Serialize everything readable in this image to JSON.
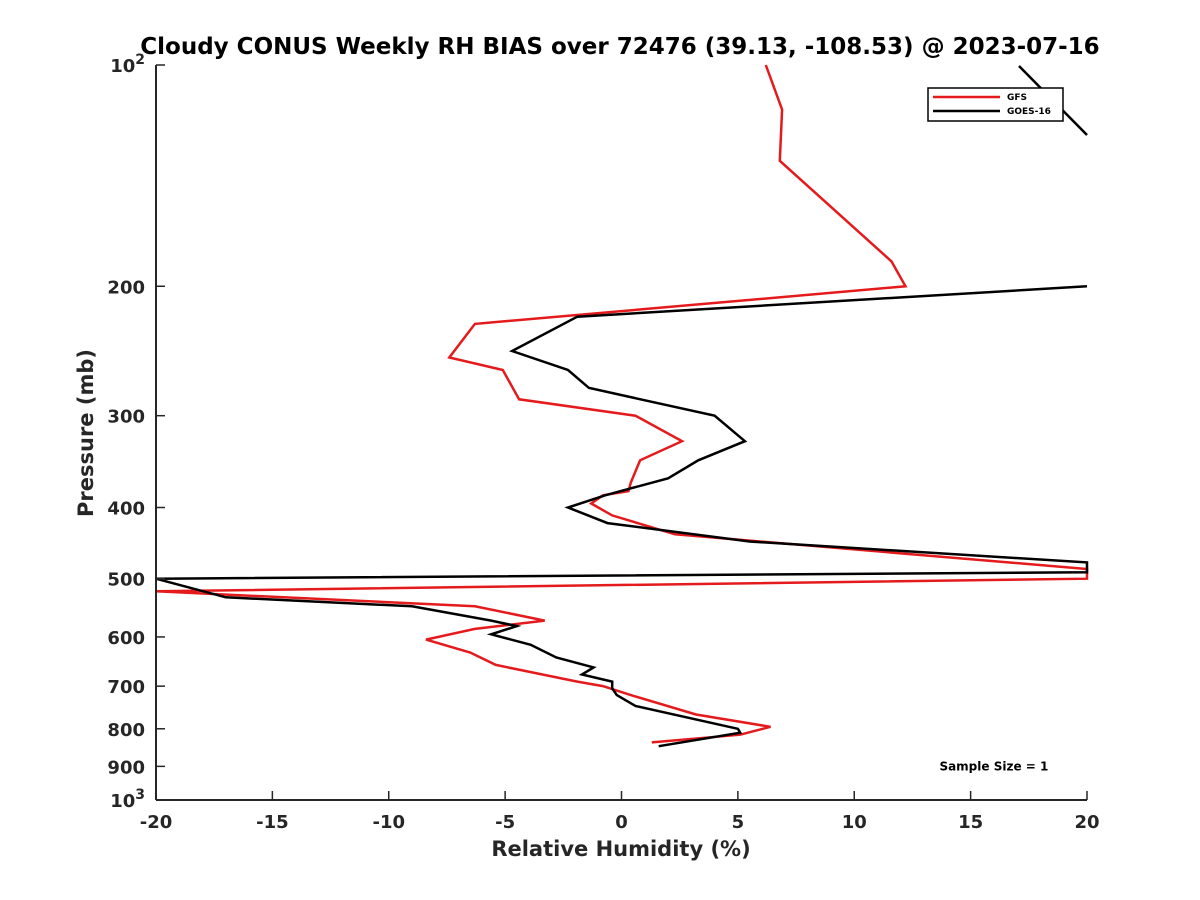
{
  "chart_data": {
    "type": "line",
    "title": "Cloudy CONUS Weekly RH BIAS over 72476 (39.13, -108.53) @ 2023-07-16",
    "xlabel": "Relative Humidity (%)",
    "ylabel": "Pressure (mb)",
    "xlim": [
      -20,
      20
    ],
    "ylim": [
      100,
      1000
    ],
    "y_scale": "log",
    "y_reversed": true,
    "grid": false,
    "legend_position": "top-right",
    "x_ticks": [
      {
        "value": -20,
        "label": "-20"
      },
      {
        "value": -15,
        "label": "-15"
      },
      {
        "value": -10,
        "label": "-10"
      },
      {
        "value": -5,
        "label": "-5"
      },
      {
        "value": 0,
        "label": "0"
      },
      {
        "value": 5,
        "label": "5"
      },
      {
        "value": 10,
        "label": "10"
      },
      {
        "value": 15,
        "label": "15"
      },
      {
        "value": 20,
        "label": "20"
      }
    ],
    "y_ticks": [
      {
        "value": 100,
        "base": "10",
        "exp": "2"
      },
      {
        "value": 200,
        "label": "200"
      },
      {
        "value": 300,
        "label": "300"
      },
      {
        "value": 400,
        "label": "400"
      },
      {
        "value": 500,
        "label": "500"
      },
      {
        "value": 600,
        "label": "600"
      },
      {
        "value": 700,
        "label": "700"
      },
      {
        "value": 800,
        "label": "800"
      },
      {
        "value": 900,
        "label": "900"
      },
      {
        "value": 1000,
        "base": "10",
        "exp": "3"
      }
    ],
    "series": [
      {
        "name": "GFS",
        "color": "#e41a1c",
        "points": [
          [
            6.2,
            100
          ],
          [
            6.9,
            115
          ],
          [
            6.8,
            135
          ],
          [
            11.6,
            185
          ],
          [
            12.2,
            200
          ],
          [
            -6.3,
            225
          ],
          [
            -7.4,
            250
          ],
          [
            -5.1,
            260
          ],
          [
            -4.4,
            285
          ],
          [
            0.6,
            300
          ],
          [
            2.6,
            325
          ],
          [
            0.8,
            345
          ],
          [
            0.4,
            370
          ],
          [
            0.3,
            380
          ],
          [
            -0.8,
            385
          ],
          [
            -1.3,
            395
          ],
          [
            -0.4,
            410
          ],
          [
            2.3,
            435
          ],
          [
            20.0,
            485
          ],
          [
            20.0,
            500
          ],
          [
            -20.0,
            520
          ],
          [
            -6.3,
            545
          ],
          [
            -3.3,
            570
          ],
          [
            -6.3,
            585
          ],
          [
            -8.4,
            605
          ],
          [
            -6.5,
            630
          ],
          [
            -5.4,
            655
          ],
          [
            -3.4,
            675
          ],
          [
            -1.9,
            690
          ],
          [
            -0.8,
            700
          ],
          [
            0.4,
            720
          ],
          [
            3.2,
            765
          ],
          [
            6.4,
            795
          ],
          [
            5.1,
            815
          ],
          [
            1.3,
            835
          ]
        ]
      },
      {
        "name": "GOES-16",
        "color": "#000000",
        "points": [
          [
            20.0,
            200
          ],
          [
            -1.9,
            220
          ],
          [
            -4.7,
            245
          ],
          [
            -2.3,
            260
          ],
          [
            -1.4,
            275
          ],
          [
            4.0,
            300
          ],
          [
            5.3,
            325
          ],
          [
            3.3,
            345
          ],
          [
            2.0,
            365
          ],
          [
            -0.7,
            385
          ],
          [
            -2.3,
            400
          ],
          [
            -0.6,
            420
          ],
          [
            5.5,
            445
          ],
          [
            20.0,
            475
          ],
          [
            20.0,
            490
          ],
          [
            -20.0,
            500
          ],
          [
            -17.0,
            530
          ],
          [
            -9.0,
            545
          ],
          [
            -5.6,
            570
          ],
          [
            -4.5,
            580
          ],
          [
            -5.6,
            595
          ],
          [
            -3.9,
            615
          ],
          [
            -2.8,
            640
          ],
          [
            -1.2,
            660
          ],
          [
            -1.7,
            675
          ],
          [
            -0.4,
            690
          ],
          [
            -0.4,
            705
          ],
          [
            -0.2,
            720
          ],
          [
            0.6,
            745
          ],
          [
            5.0,
            800
          ],
          [
            5.1,
            810
          ],
          [
            1.6,
            845
          ]
        ]
      }
    ],
    "annotations": [
      {
        "text": "Sample Size = 1",
        "x": 16.0,
        "y": 900
      }
    ]
  }
}
